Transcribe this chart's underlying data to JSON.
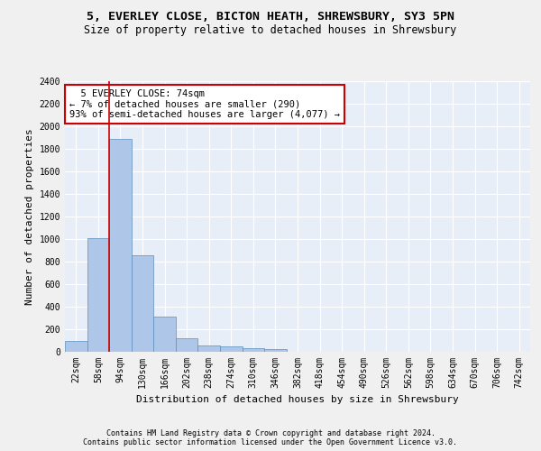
{
  "title1": "5, EVERLEY CLOSE, BICTON HEATH, SHREWSBURY, SY3 5PN",
  "title2": "Size of property relative to detached houses in Shrewsbury",
  "xlabel": "Distribution of detached houses by size in Shrewsbury",
  "ylabel": "Number of detached properties",
  "bin_labels": [
    "22sqm",
    "58sqm",
    "94sqm",
    "130sqm",
    "166sqm",
    "202sqm",
    "238sqm",
    "274sqm",
    "310sqm",
    "346sqm",
    "382sqm",
    "418sqm",
    "454sqm",
    "490sqm",
    "526sqm",
    "562sqm",
    "598sqm",
    "634sqm",
    "670sqm",
    "706sqm",
    "742sqm"
  ],
  "bar_values": [
    95,
    1010,
    1890,
    860,
    315,
    120,
    60,
    50,
    35,
    22,
    0,
    0,
    0,
    0,
    0,
    0,
    0,
    0,
    0,
    0,
    0
  ],
  "bar_color": "#aec6e8",
  "bar_edge_color": "#5a8fc0",
  "annotation_text": "  5 EVERLEY CLOSE: 74sqm\n← 7% of detached houses are smaller (290)\n93% of semi-detached houses are larger (4,077) →",
  "annotation_box_color": "#ffffff",
  "annotation_box_edge_color": "#cc0000",
  "red_line_color": "#cc0000",
  "ylim": [
    0,
    2400
  ],
  "yticks": [
    0,
    200,
    400,
    600,
    800,
    1000,
    1200,
    1400,
    1600,
    1800,
    2000,
    2200,
    2400
  ],
  "footer1": "Contains HM Land Registry data © Crown copyright and database right 2024.",
  "footer2": "Contains public sector information licensed under the Open Government Licence v3.0.",
  "bg_color": "#e8eef7",
  "grid_color": "#ffffff",
  "fig_bg_color": "#f0f0f0",
  "title1_fontsize": 9.5,
  "title2_fontsize": 8.5,
  "xlabel_fontsize": 8,
  "ylabel_fontsize": 8,
  "tick_fontsize": 7,
  "annotation_fontsize": 7.5,
  "footer_fontsize": 6
}
